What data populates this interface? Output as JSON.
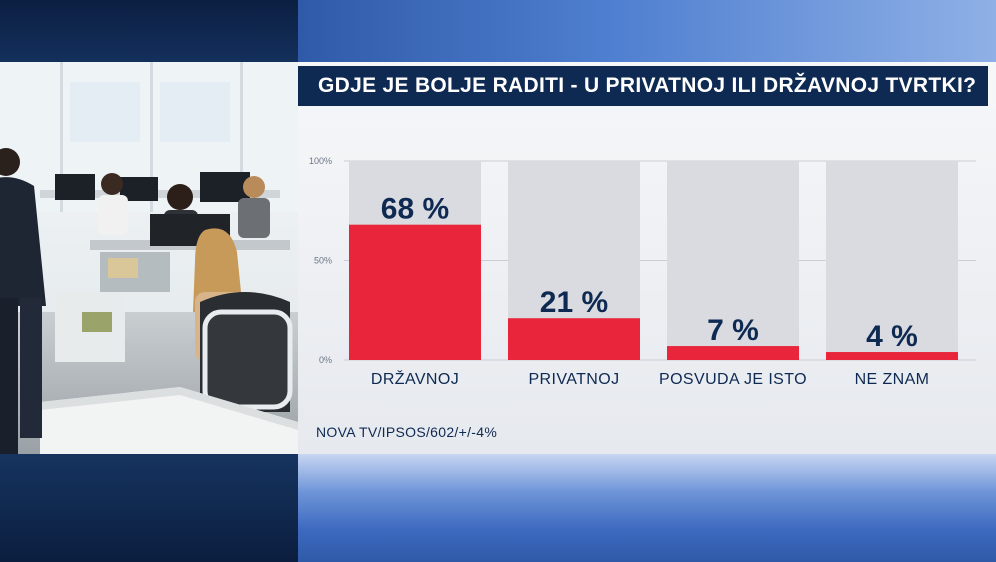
{
  "header": {
    "title": "GDJE JE BOLJE RADITI - U PRIVATNOJ ILI DRŽAVNOJ TVRTKI?"
  },
  "source": "NOVA TV/IPSOS/602/+/-4%",
  "photo": {
    "description_icon": "office-photo"
  },
  "colors": {
    "bar": "#e8253a",
    "bar_bg": "#d9dbe0",
    "title_bg": "#0f2a52",
    "text": "#0f2a52"
  },
  "chart_data": {
    "type": "bar",
    "categories": [
      "DRŽAVNOJ",
      "PRIVATNOJ",
      "POSVUDA JE ISTO",
      "NE ZNAM"
    ],
    "values": [
      68,
      21,
      7,
      4
    ],
    "value_labels": [
      "68 %",
      "21 %",
      "7 %",
      "4 %"
    ],
    "ylim": [
      0,
      100
    ],
    "yticks": [
      0,
      50,
      100
    ],
    "ytick_labels": [
      "0%",
      "50%",
      "100%"
    ],
    "grid": true,
    "legend": "none"
  }
}
